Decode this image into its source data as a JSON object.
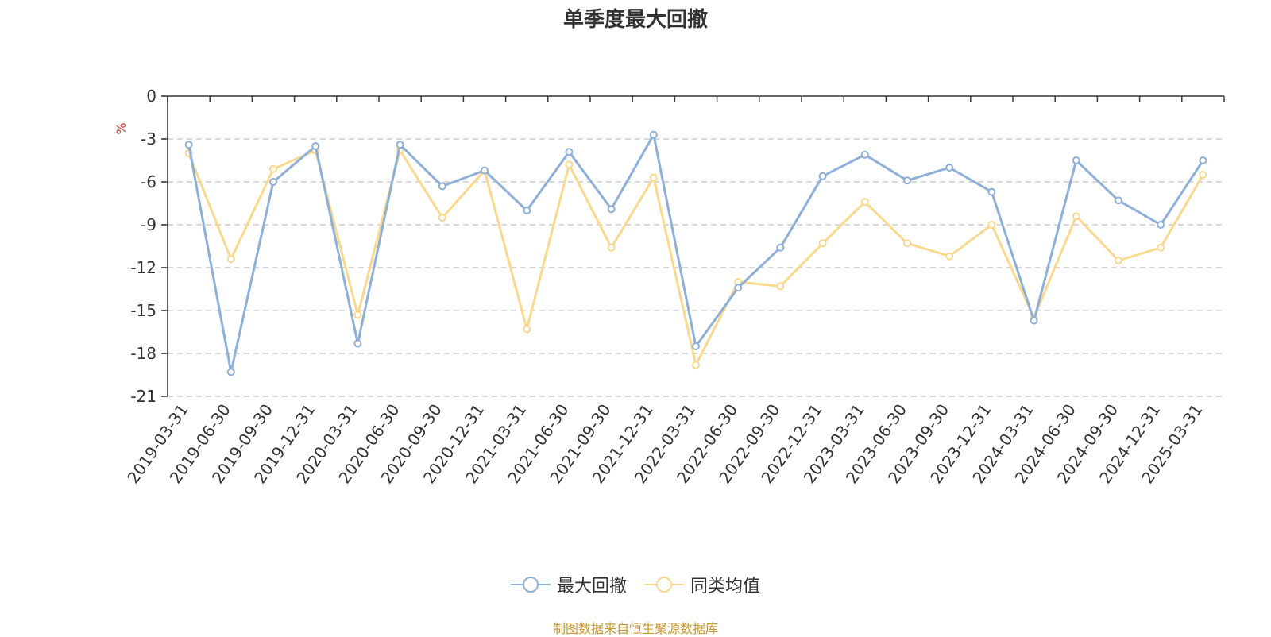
{
  "title": "单季度最大回撤",
  "source_note": "制图数据来自恒生聚源数据库",
  "chart_data": {
    "type": "line",
    "title": "单季度最大回撤",
    "ylabel": "%",
    "xlabel": "",
    "ylim": [
      -21,
      0
    ],
    "yticks": [
      "0",
      "-3",
      "-6",
      "-9",
      "-12",
      "-15",
      "-18",
      "-21"
    ],
    "grid": true,
    "legend_position": "bottom",
    "categories": [
      "2019-03-31",
      "2019-06-30",
      "2019-09-30",
      "2019-12-31",
      "2020-03-31",
      "2020-06-30",
      "2020-09-30",
      "2020-12-31",
      "2021-03-31",
      "2021-06-30",
      "2021-09-30",
      "2021-12-31",
      "2022-03-31",
      "2022-06-30",
      "2022-09-30",
      "2022-12-31",
      "2023-03-31",
      "2023-06-30",
      "2023-09-30",
      "2023-12-31",
      "2024-03-31",
      "2024-06-30",
      "2024-09-30",
      "2024-12-31",
      "2025-03-31"
    ],
    "series": [
      {
        "name": "最大回撤",
        "color": "#8eafd8",
        "values": [
          -3.4,
          -19.3,
          -6.0,
          -3.5,
          -17.3,
          -3.4,
          -6.3,
          -5.2,
          -8.0,
          -3.9,
          -7.9,
          -2.7,
          -17.5,
          -13.4,
          -10.6,
          -5.6,
          -4.1,
          -5.9,
          -5.0,
          -6.7,
          -15.7,
          -4.5,
          -7.3,
          -9.0,
          -4.5
        ]
      },
      {
        "name": "同类均值",
        "color": "#fad98e",
        "values": [
          -4.0,
          -11.4,
          -5.1,
          -3.8,
          -15.3,
          -3.8,
          -8.5,
          -5.2,
          -16.3,
          -4.8,
          -10.6,
          -5.7,
          -18.8,
          -13.0,
          -13.3,
          -10.3,
          -7.4,
          -10.3,
          -11.2,
          -9.0,
          -15.5,
          -8.4,
          -11.5,
          -10.6,
          -5.5
        ]
      }
    ]
  }
}
